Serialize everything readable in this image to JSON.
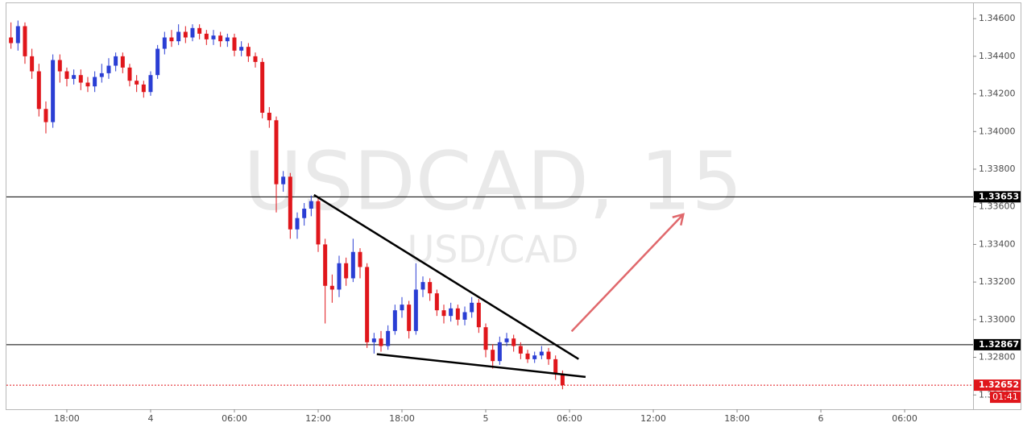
{
  "chart_data": {
    "type": "candlestick",
    "title": "USDCAD, 15",
    "subtitle": "USD/CAD",
    "up_color": "#2a3ed4",
    "down_color": "#e0161b",
    "x": [
      -8,
      -7,
      -6,
      -5,
      -4,
      -3,
      -2,
      -1,
      0,
      1,
      2,
      3,
      4,
      5,
      6,
      7,
      8,
      9,
      10,
      11,
      12,
      13,
      14,
      15,
      16,
      17,
      18,
      19,
      20,
      21,
      22,
      23,
      24,
      25,
      26,
      27,
      28,
      29,
      30,
      31,
      32,
      33,
      34,
      35,
      36,
      37,
      38,
      39,
      40,
      41,
      42,
      43,
      44,
      45,
      46,
      47,
      48,
      49,
      50,
      51,
      52,
      53,
      54,
      55,
      56,
      57,
      58,
      59,
      60,
      61,
      62,
      63,
      64,
      65,
      66,
      67,
      68,
      69,
      70,
      71
    ],
    "open": [
      1.345,
      1.3447,
      1.3456,
      1.344,
      1.3432,
      1.3412,
      1.3405,
      1.3438,
      1.3432,
      1.3428,
      1.343,
      1.3426,
      1.3424,
      1.3429,
      1.3431,
      1.3435,
      1.344,
      1.3434,
      1.3427,
      1.3425,
      1.3421,
      1.343,
      1.3444,
      1.345,
      1.3448,
      1.3453,
      1.345,
      1.3455,
      1.3452,
      1.3449,
      1.3451,
      1.3448,
      1.345,
      1.3443,
      1.3445,
      1.344,
      1.3437,
      1.341,
      1.3406,
      1.3372,
      1.3376,
      1.3348,
      1.3354,
      1.3359,
      1.3363,
      1.334,
      1.3318,
      1.3316,
      1.333,
      1.3322,
      1.3336,
      1.3328,
      1.3288,
      1.329,
      1.3286,
      1.3294,
      1.3305,
      1.3308,
      1.3294,
      1.3316,
      1.332,
      1.3314,
      1.3305,
      1.3302,
      1.3306,
      1.33,
      1.3304,
      1.3309,
      1.3296,
      1.3284,
      1.3278,
      1.3288,
      1.329,
      1.3286,
      1.3282,
      1.3279,
      1.3281,
      1.3283,
      1.3279,
      1.3271
    ],
    "high": [
      1.3458,
      1.3459,
      1.3458,
      1.3444,
      1.3436,
      1.3416,
      1.3441,
      1.3441,
      1.3434,
      1.3433,
      1.3433,
      1.3429,
      1.3432,
      1.3436,
      1.3439,
      1.3442,
      1.3442,
      1.3436,
      1.343,
      1.3427,
      1.3432,
      1.3446,
      1.3453,
      1.3454,
      1.3457,
      1.3456,
      1.3457,
      1.3457,
      1.3454,
      1.3454,
      1.3453,
      1.3452,
      1.3452,
      1.3448,
      1.3447,
      1.3442,
      1.3439,
      1.3413,
      1.3408,
      1.3379,
      1.3378,
      1.3357,
      1.3362,
      1.3366,
      1.3365,
      1.3343,
      1.3324,
      1.3334,
      1.3333,
      1.3343,
      1.3338,
      1.333,
      1.3293,
      1.3294,
      1.3297,
      1.3308,
      1.3312,
      1.331,
      1.333,
      1.3323,
      1.3322,
      1.3316,
      1.3308,
      1.3309,
      1.3308,
      1.3307,
      1.3312,
      1.3311,
      1.3298,
      1.3287,
      1.3291,
      1.3293,
      1.3292,
      1.3288,
      1.3284,
      1.3283,
      1.3286,
      1.3285,
      1.3281,
      1.3273
    ],
    "low": [
      1.3444,
      1.3443,
      1.3436,
      1.3428,
      1.3408,
      1.3399,
      1.3402,
      1.3426,
      1.3424,
      1.3425,
      1.3422,
      1.3421,
      1.3421,
      1.3426,
      1.3428,
      1.3432,
      1.3431,
      1.3424,
      1.3421,
      1.3418,
      1.3419,
      1.3428,
      1.3441,
      1.3445,
      1.3446,
      1.3447,
      1.3448,
      1.3449,
      1.3446,
      1.3446,
      1.3445,
      1.3445,
      1.344,
      1.344,
      1.3437,
      1.3434,
      1.3407,
      1.3402,
      1.3357,
      1.3368,
      1.3343,
      1.3343,
      1.335,
      1.3355,
      1.3336,
      1.3298,
      1.3309,
      1.3312,
      1.3318,
      1.332,
      1.3322,
      1.3285,
      1.3282,
      1.3283,
      1.3284,
      1.3292,
      1.3301,
      1.329,
      1.3292,
      1.3312,
      1.331,
      1.3302,
      1.3298,
      1.3299,
      1.3297,
      1.3297,
      1.3301,
      1.3293,
      1.328,
      1.3274,
      1.3276,
      1.3286,
      1.3283,
      1.3279,
      1.3277,
      1.3277,
      1.3279,
      1.3276,
      1.3268,
      1.3263
    ],
    "close": [
      1.3447,
      1.3456,
      1.344,
      1.3432,
      1.3412,
      1.3405,
      1.3438,
      1.3432,
      1.3428,
      1.343,
      1.3426,
      1.3424,
      1.3429,
      1.3431,
      1.3435,
      1.344,
      1.3434,
      1.3427,
      1.3425,
      1.3421,
      1.343,
      1.3444,
      1.345,
      1.3448,
      1.3453,
      1.345,
      1.3455,
      1.3452,
      1.3449,
      1.3451,
      1.3448,
      1.345,
      1.3443,
      1.3445,
      1.344,
      1.3437,
      1.341,
      1.3406,
      1.3372,
      1.3376,
      1.3348,
      1.3354,
      1.3359,
      1.3363,
      1.334,
      1.3318,
      1.3316,
      1.333,
      1.3322,
      1.3336,
      1.3328,
      1.3288,
      1.329,
      1.3286,
      1.3294,
      1.3305,
      1.3308,
      1.3294,
      1.3316,
      1.332,
      1.3314,
      1.3305,
      1.3302,
      1.3306,
      1.33,
      1.3304,
      1.3309,
      1.3296,
      1.3284,
      1.3278,
      1.3288,
      1.329,
      1.3286,
      1.3282,
      1.3279,
      1.3281,
      1.3283,
      1.3279,
      1.3271,
      1.32652
    ],
    "xlim": [
      -8.65,
      129.8
    ],
    "xticks": [
      {
        "value": 0,
        "label": "18:00"
      },
      {
        "value": 12,
        "label": "4"
      },
      {
        "value": 24,
        "label": "06:00"
      },
      {
        "value": 36,
        "label": "12:00"
      },
      {
        "value": 48,
        "label": "18:00"
      },
      {
        "value": 60,
        "label": "5"
      },
      {
        "value": 72,
        "label": "06:00"
      },
      {
        "value": 84,
        "label": "12:00"
      },
      {
        "value": 96,
        "label": "18:00"
      },
      {
        "value": 108,
        "label": "6"
      },
      {
        "value": 120,
        "label": "06:00"
      }
    ],
    "ylim": [
      1.32524,
      1.34682
    ],
    "yticks": [
      {
        "value": 1.326,
        "label": "1.32600"
      },
      {
        "value": 1.328,
        "label": "1.32800"
      },
      {
        "value": 1.33,
        "label": "1.33000"
      },
      {
        "value": 1.332,
        "label": "1.33200"
      },
      {
        "value": 1.334,
        "label": "1.33400"
      },
      {
        "value": 1.336,
        "label": "1.33600"
      },
      {
        "value": 1.338,
        "label": "1.33800"
      },
      {
        "value": 1.34,
        "label": "1.34000"
      },
      {
        "value": 1.342,
        "label": "1.34200"
      },
      {
        "value": 1.344,
        "label": "1.34400"
      },
      {
        "value": 1.346,
        "label": "1.34600"
      }
    ],
    "grid": false,
    "price_lines": [
      {
        "value": 1.33653,
        "color": "#000000",
        "style": "solid"
      },
      {
        "value": 1.32867,
        "color": "#000000",
        "style": "solid"
      },
      {
        "value": 1.32652,
        "color": "#e0161b",
        "style": "dotted"
      }
    ],
    "countdown": "01:41",
    "trendlines": [
      {
        "x": [
          35.4,
          73.3
        ],
        "y": [
          1.33663,
          1.32791
        ],
        "color": "#000000"
      },
      {
        "x": [
          44.4,
          74.3
        ],
        "y": [
          1.32817,
          1.32696
        ],
        "color": "#000000"
      }
    ],
    "arrow": {
      "x": [
        72.3,
        88.3
      ],
      "y": [
        1.32938,
        1.3356
      ],
      "color": "#e0686c"
    }
  }
}
